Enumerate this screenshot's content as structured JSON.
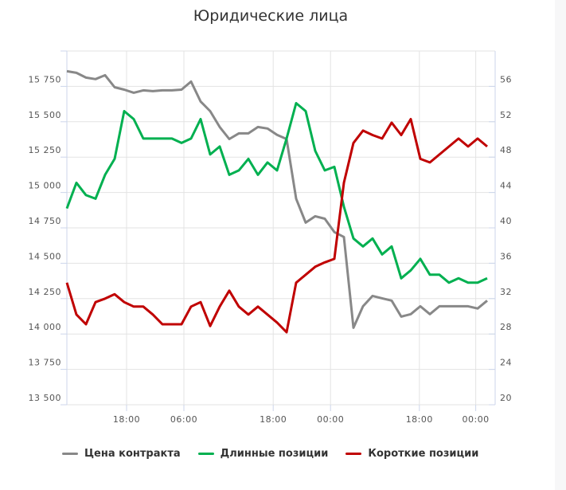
{
  "chart_data": {
    "type": "line",
    "title": "Юридические лица",
    "x_tick_labels": [
      {
        "label": "18:00",
        "at_index": 6.25
      },
      {
        "label": "06:00",
        "at_index": 12.25
      },
      {
        "label": "18:00",
        "at_index": 21.6
      },
      {
        "label": "00:00",
        "at_index": 27.6
      },
      {
        "label": "18:00",
        "at_index": 36.9
      },
      {
        "label": "00:00",
        "at_index": 42.8
      }
    ],
    "y_left": {
      "ylim": [
        13500,
        16000
      ],
      "ticks": [
        "13 500",
        "13 750",
        "14 000",
        "14 250",
        "14 500",
        "14 750",
        "15 000",
        "15 250",
        "15 500",
        "15 750"
      ],
      "tick_values": [
        13500,
        13750,
        14000,
        14250,
        14500,
        14750,
        15000,
        15250,
        15500,
        15750
      ]
    },
    "y_right": {
      "ylim": [
        20,
        60
      ],
      "ticks": [
        "20",
        "24",
        "28",
        "32",
        "36",
        "40",
        "44",
        "48",
        "52",
        "56"
      ],
      "tick_values": [
        20,
        24,
        28,
        32,
        36,
        40,
        44,
        48,
        52,
        56
      ]
    },
    "grid": true,
    "legend_position": "bottom",
    "series": [
      {
        "name": "Цена контракта",
        "axis": "left",
        "color": "#888888",
        "values": [
          15857,
          15846,
          15812,
          15801,
          15829,
          15744,
          15727,
          15705,
          15722,
          15716,
          15722,
          15722,
          15727,
          15784,
          15643,
          15575,
          15463,
          15378,
          15418,
          15418,
          15463,
          15452,
          15407,
          15378,
          14956,
          14787,
          14832,
          14815,
          14720,
          14686,
          14044,
          14196,
          14269,
          14252,
          14236,
          14123,
          14140,
          14196,
          14140,
          14196,
          14196,
          14196,
          14196,
          14180,
          14236
        ]
      },
      {
        "name": "Длинные позиции",
        "axis": "right",
        "color": "#00b050",
        "values": [
          42.2,
          45.1,
          43.7,
          43.3,
          46.0,
          47.8,
          53.2,
          52.3,
          50.1,
          50.1,
          50.1,
          50.1,
          49.6,
          50.1,
          52.3,
          48.3,
          49.2,
          46.0,
          46.5,
          47.8,
          46.0,
          47.4,
          46.5,
          50.1,
          54.1,
          53.2,
          48.7,
          46.5,
          46.9,
          42.4,
          38.8,
          37.9,
          38.8,
          37.0,
          37.9,
          34.3,
          35.2,
          36.5,
          34.7,
          34.7,
          33.8,
          34.3,
          33.8,
          33.8,
          34.3
        ]
      },
      {
        "name": "Короткие позиции",
        "axis": "right",
        "color": "#c00000",
        "values": [
          33.8,
          30.2,
          29.1,
          31.6,
          32.0,
          32.5,
          31.6,
          31.1,
          31.1,
          30.2,
          29.1,
          29.1,
          29.1,
          31.1,
          31.6,
          28.9,
          31.1,
          32.9,
          31.1,
          30.2,
          31.1,
          30.2,
          29.3,
          28.2,
          33.8,
          34.7,
          35.6,
          36.1,
          36.5,
          45.1,
          49.6,
          51.0,
          50.5,
          50.1,
          51.9,
          50.5,
          52.3,
          47.8,
          47.4,
          48.3,
          49.2,
          50.1,
          49.2,
          50.1,
          49.2
        ]
      }
    ]
  }
}
